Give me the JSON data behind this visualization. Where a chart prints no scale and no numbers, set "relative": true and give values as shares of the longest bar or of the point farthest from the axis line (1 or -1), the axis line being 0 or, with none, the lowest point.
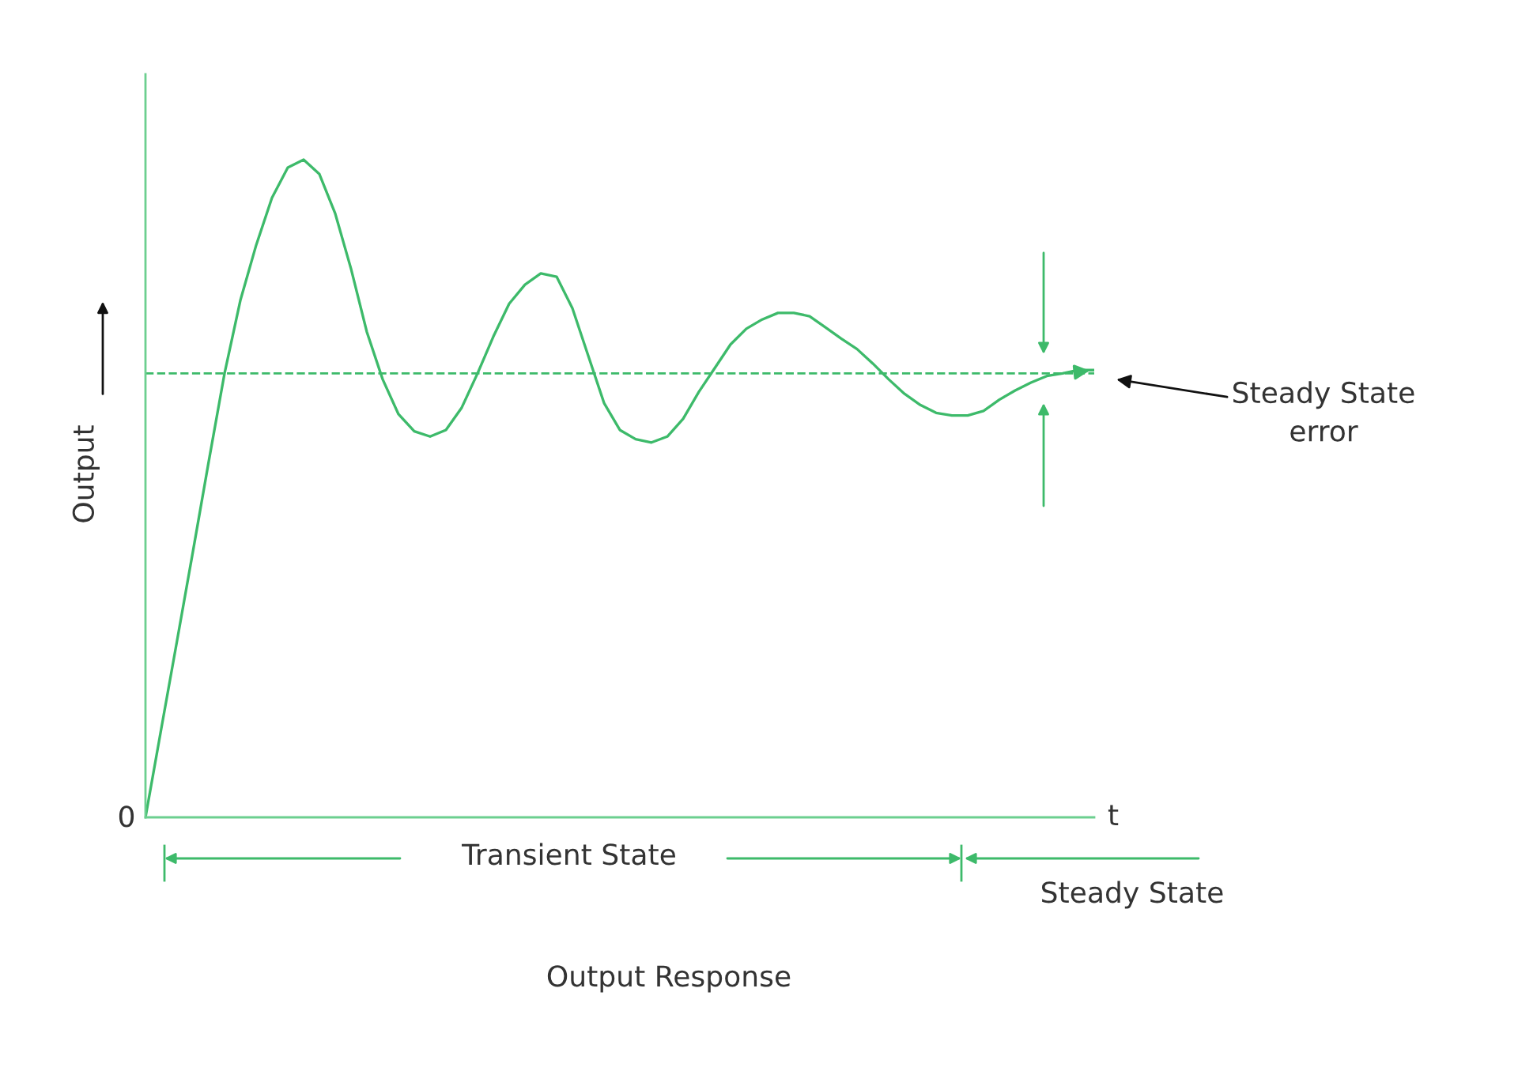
{
  "chart_data": {
    "type": "line",
    "relative": true,
    "xlabel": "t",
    "ylabel": "Output",
    "categories": [
      null,
      null,
      null,
      null,
      null,
      null,
      null,
      null,
      null,
      null,
      null,
      null,
      null,
      null,
      null,
      null,
      null,
      null,
      null,
      null,
      null,
      null,
      null,
      null,
      null,
      null,
      null,
      null,
      null,
      null,
      null,
      null,
      null,
      null,
      null,
      null,
      null,
      null,
      null,
      null,
      null,
      null,
      null,
      null,
      null,
      null,
      null,
      null,
      null,
      null,
      null,
      null,
      null,
      null,
      null,
      null,
      null,
      null,
      null,
      null,
      null
    ],
    "series": [
      {
        "color": "#3dba6a",
        "values": [
          0,
          0.135,
          0.269,
          0.404,
          0.541,
          0.675,
          0.786,
          0.87,
          0.942,
          0.988,
          1,
          0.978,
          0.918,
          0.834,
          0.738,
          0.666,
          0.613,
          0.587,
          0.579,
          0.589,
          0.623,
          0.675,
          0.731,
          0.781,
          0.81,
          0.827,
          0.822,
          0.774,
          0.702,
          0.63,
          0.589,
          0.575,
          0.57,
          0.579,
          0.606,
          0.647,
          0.683,
          0.719,
          0.743,
          0.757,
          0.767,
          0.767,
          0.762,
          0.745,
          0.728,
          0.712,
          0.69,
          0.666,
          0.644,
          0.627,
          0.615,
          0.611,
          0.611,
          0.618,
          0.635,
          0.649,
          0.661,
          0.671,
          0.675,
          0.68,
          0.68
        ]
      }
    ],
    "ref_lines": [
      {
        "axis": "y",
        "value": 0.675,
        "color": "#3dba6a",
        "line_style": "dashed"
      }
    ],
    "annotations": [
      "0",
      "Transient State",
      "Steady State",
      "Steady State\nerror",
      "Output Response"
    ],
    "legend": false,
    "marker": "none",
    "line_style": "solid"
  }
}
